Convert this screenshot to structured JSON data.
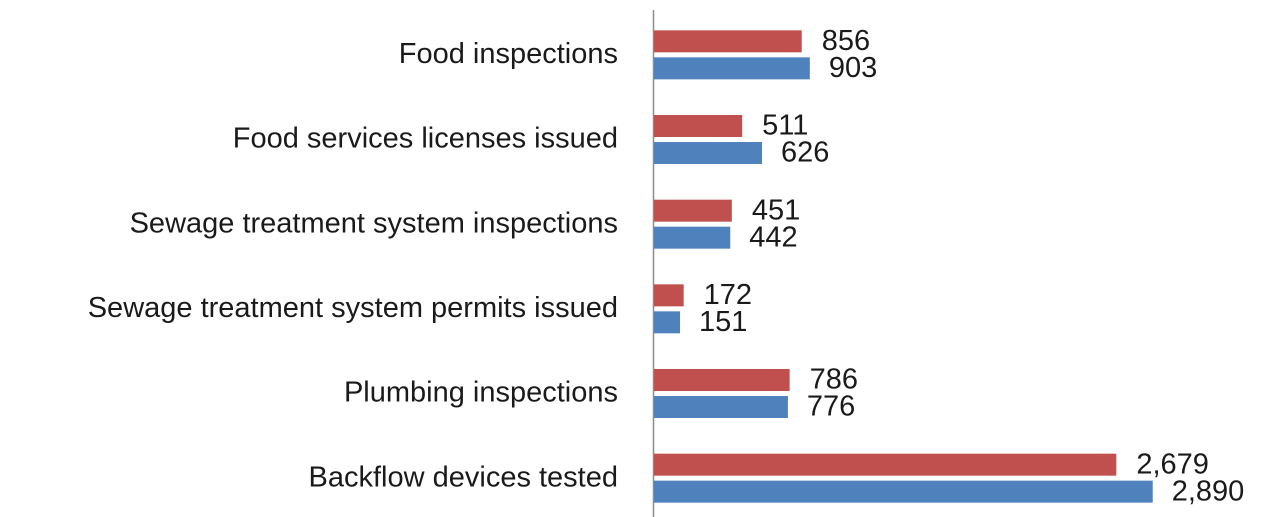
{
  "chart_data": {
    "type": "bar",
    "orientation": "horizontal",
    "categories": [
      "Food inspections",
      "Food services licenses issued",
      "Sewage treatment system inspections",
      "Sewage treatment system permits issued",
      "Plumbing inspections",
      "Backflow devices tested"
    ],
    "series": [
      {
        "color": "#c0504d",
        "values": [
          856,
          511,
          451,
          172,
          786,
          2679
        ],
        "value_labels": [
          "856",
          "511",
          "451",
          "172",
          "786",
          "2,679"
        ]
      },
      {
        "color": "#4f81bd",
        "values": [
          903,
          626,
          442,
          151,
          776,
          2890
        ],
        "value_labels": [
          "903",
          "626",
          "442",
          "151",
          "776",
          "2,890"
        ]
      }
    ],
    "xlim": [
      0,
      3500
    ]
  }
}
